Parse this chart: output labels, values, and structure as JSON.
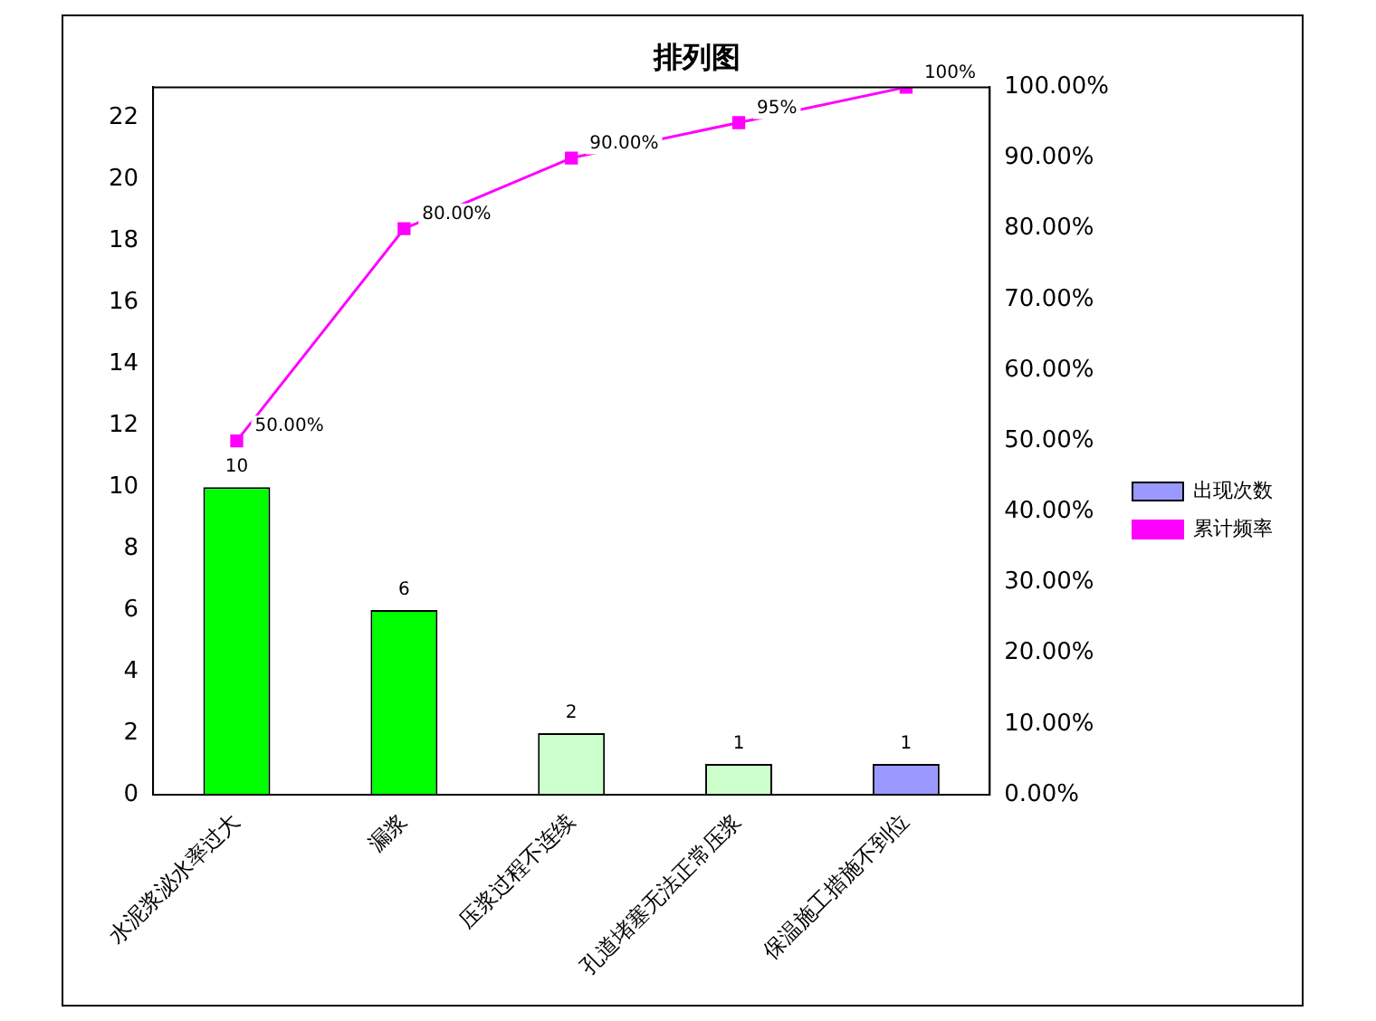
{
  "chart_data": {
    "type": "bar",
    "title": "排列图",
    "categories": [
      "水泥浆泌水率过大",
      "漏浆",
      "压浆过程不连续",
      "孔道堵塞无法正常压浆",
      "保温施工措施不到位"
    ],
    "series": [
      {
        "name": "出现次数",
        "colors": [
          "#00ff00",
          "#00ff00",
          "#ccffcc",
          "#ccffcc",
          "#9999ff"
        ],
        "color": "#9999ff",
        "values": [
          10,
          6,
          2,
          1,
          1
        ],
        "value_labels": [
          "10",
          "6",
          "2",
          "1",
          "1"
        ]
      },
      {
        "name": "累计频率",
        "type": "line",
        "axis": "y2",
        "color": "#ff00ff",
        "values": [
          50,
          80,
          90,
          95,
          100
        ],
        "value_labels": [
          "50.00%",
          "80.00%",
          "90.00%",
          "95%",
          "100%"
        ]
      }
    ],
    "ylim": [
      0,
      23
    ],
    "yticks": [
      0,
      2,
      4,
      6,
      8,
      10,
      12,
      14,
      16,
      18,
      20,
      22
    ],
    "y2lim": [
      0,
      100
    ],
    "y2ticks": [
      {
        "value": 0,
        "label": "0.00%"
      },
      {
        "value": 10,
        "label": "10.00%"
      },
      {
        "value": 20,
        "label": "20.00%"
      },
      {
        "value": 30,
        "label": "30.00%"
      },
      {
        "value": 40,
        "label": "40.00%"
      },
      {
        "value": 50,
        "label": "50.00%"
      },
      {
        "value": 60,
        "label": "60.00%"
      },
      {
        "value": 70,
        "label": "70.00%"
      },
      {
        "value": 80,
        "label": "80.00%"
      },
      {
        "value": 90,
        "label": "90.00%"
      },
      {
        "value": 100,
        "label": "100.00%"
      }
    ],
    "grid": false,
    "legend": "right",
    "marker": "square",
    "line_style": "solid"
  }
}
